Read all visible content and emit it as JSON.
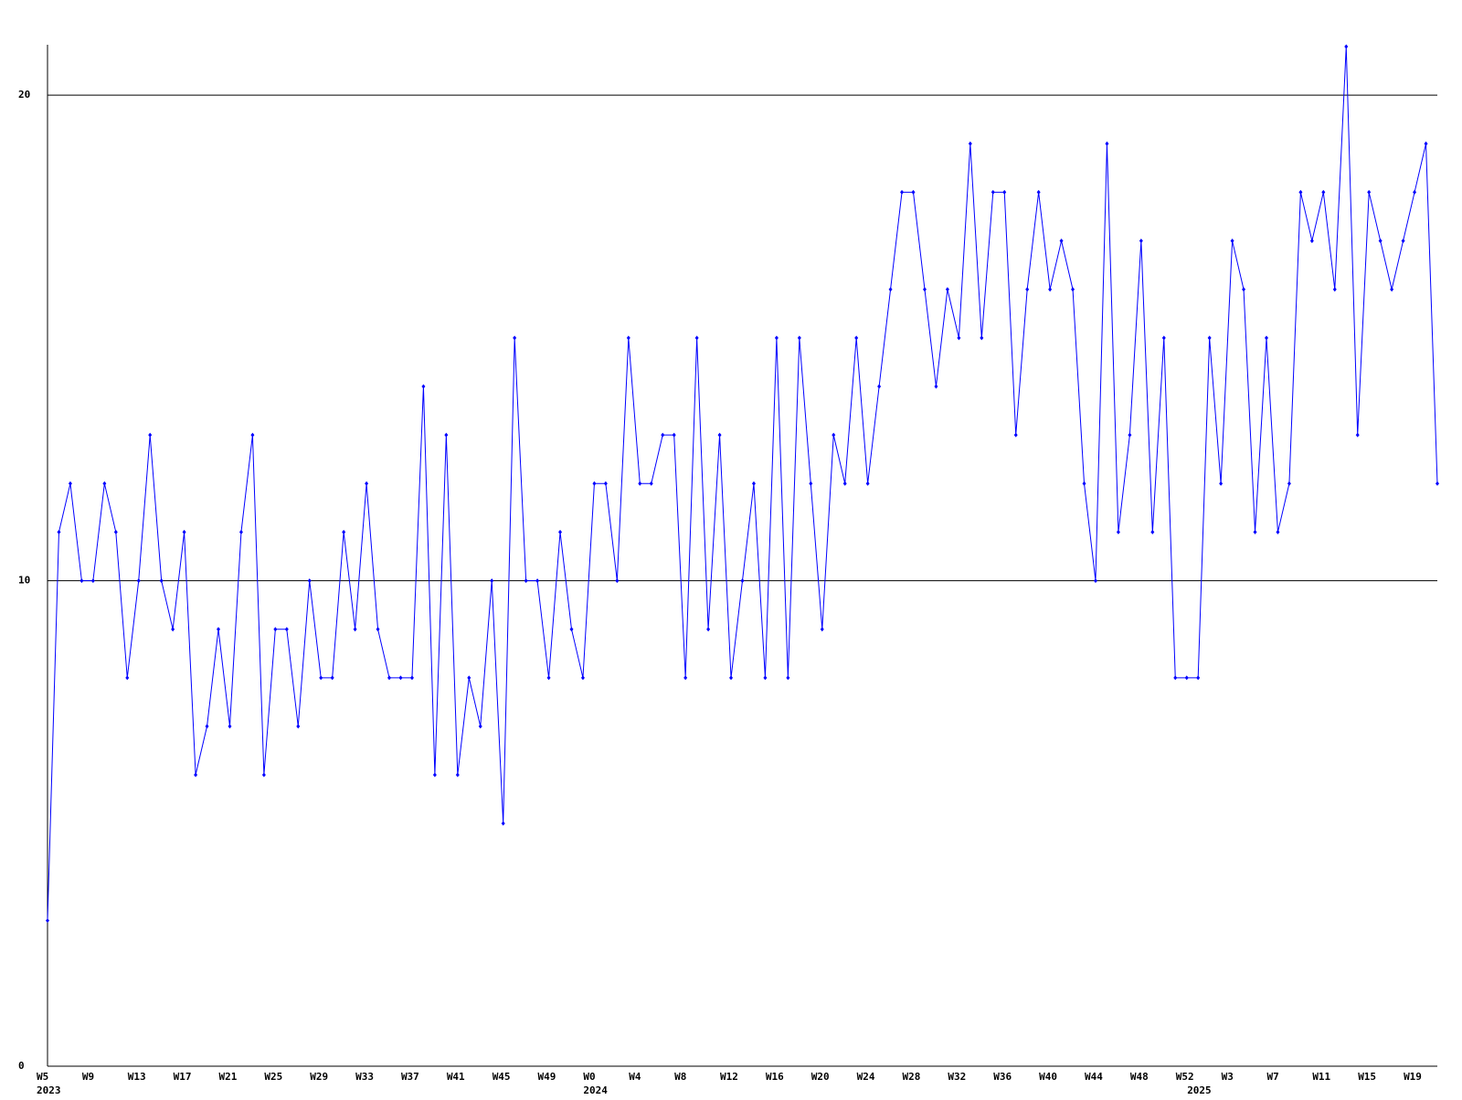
{
  "chart_data": {
    "type": "line",
    "categories": [
      "W5",
      null,
      null,
      null,
      "W9",
      null,
      null,
      null,
      "W13",
      null,
      null,
      null,
      "W17",
      null,
      null,
      null,
      "W21",
      null,
      null,
      null,
      "W25",
      null,
      null,
      null,
      "W29",
      null,
      null,
      null,
      "W33",
      null,
      null,
      null,
      "W37",
      null,
      null,
      null,
      "W41",
      null,
      null,
      null,
      "W45",
      null,
      null,
      null,
      "W49",
      null,
      null,
      null,
      "W0",
      null,
      null,
      null,
      "W4",
      null,
      null,
      null,
      "W8",
      null,
      null,
      null,
      "W12",
      null,
      null,
      null,
      "W16",
      null,
      null,
      null,
      "W20",
      null,
      null,
      null,
      "W24",
      null,
      null,
      null,
      "W28",
      null,
      null,
      null,
      "W32",
      null,
      null,
      null,
      "W36",
      null,
      null,
      null,
      "W40",
      null,
      null,
      null,
      "W44",
      null,
      null,
      null,
      "W48",
      null,
      null,
      null,
      "W52",
      null,
      null,
      null,
      "W3",
      null,
      null,
      null,
      "W7",
      null,
      null,
      null,
      "W11",
      null,
      null,
      null,
      "W15",
      null,
      null,
      null,
      "W19",
      null,
      null
    ],
    "years": [
      "2023",
      null,
      null,
      null,
      null,
      null,
      null,
      null,
      null,
      null,
      null,
      null,
      null,
      null,
      null,
      null,
      null,
      null,
      null,
      null,
      null,
      null,
      null,
      null,
      null,
      null,
      null,
      null,
      null,
      null,
      null,
      null,
      null,
      null,
      null,
      null,
      null,
      null,
      null,
      null,
      null,
      null,
      null,
      null,
      null,
      null,
      null,
      null,
      "2024",
      null,
      null,
      null,
      null,
      null,
      null,
      null,
      null,
      null,
      null,
      null,
      null,
      null,
      null,
      null,
      null,
      null,
      null,
      null,
      null,
      null,
      null,
      null,
      null,
      null,
      null,
      null,
      null,
      null,
      null,
      null,
      null,
      null,
      null,
      null,
      null,
      null,
      null,
      null,
      null,
      null,
      null,
      null,
      null,
      null,
      null,
      null,
      null,
      null,
      null,
      null,
      null,
      "2025",
      null,
      null,
      null,
      null,
      null,
      null,
      null,
      null,
      null,
      null,
      null,
      null,
      null,
      null,
      null,
      null,
      null,
      null,
      null,
      null,
      null
    ],
    "series": [
      {
        "color": "#0000ff",
        "values": [
          3,
          11,
          12,
          10,
          10,
          12,
          11,
          8,
          10,
          13,
          10,
          9,
          11,
          6,
          7,
          9,
          7,
          11,
          13,
          6,
          9,
          9,
          7,
          10,
          8,
          8,
          11,
          9,
          12,
          9,
          8,
          8,
          8,
          14,
          6,
          13,
          6,
          8,
          7,
          10,
          5,
          15,
          10,
          10,
          8,
          11,
          9,
          8,
          12,
          12,
          10,
          15,
          12,
          12,
          13,
          13,
          8,
          15,
          9,
          13,
          8,
          10,
          12,
          8,
          15,
          8,
          15,
          12,
          9,
          13,
          12,
          15,
          12,
          14,
          16,
          18,
          18,
          16,
          14,
          16,
          15,
          19,
          15,
          18,
          18,
          13,
          16,
          18,
          16,
          17,
          16,
          12,
          10,
          19,
          11,
          13,
          17,
          11,
          15,
          8,
          8,
          8,
          15,
          12,
          17,
          16,
          11,
          15,
          11,
          12,
          18,
          17,
          18,
          16,
          21,
          13,
          18,
          17,
          16,
          17,
          18,
          19,
          12
        ]
      }
    ],
    "ylim": [
      0,
      21
    ],
    "yticks": [
      0,
      10,
      20
    ],
    "grid": true
  }
}
